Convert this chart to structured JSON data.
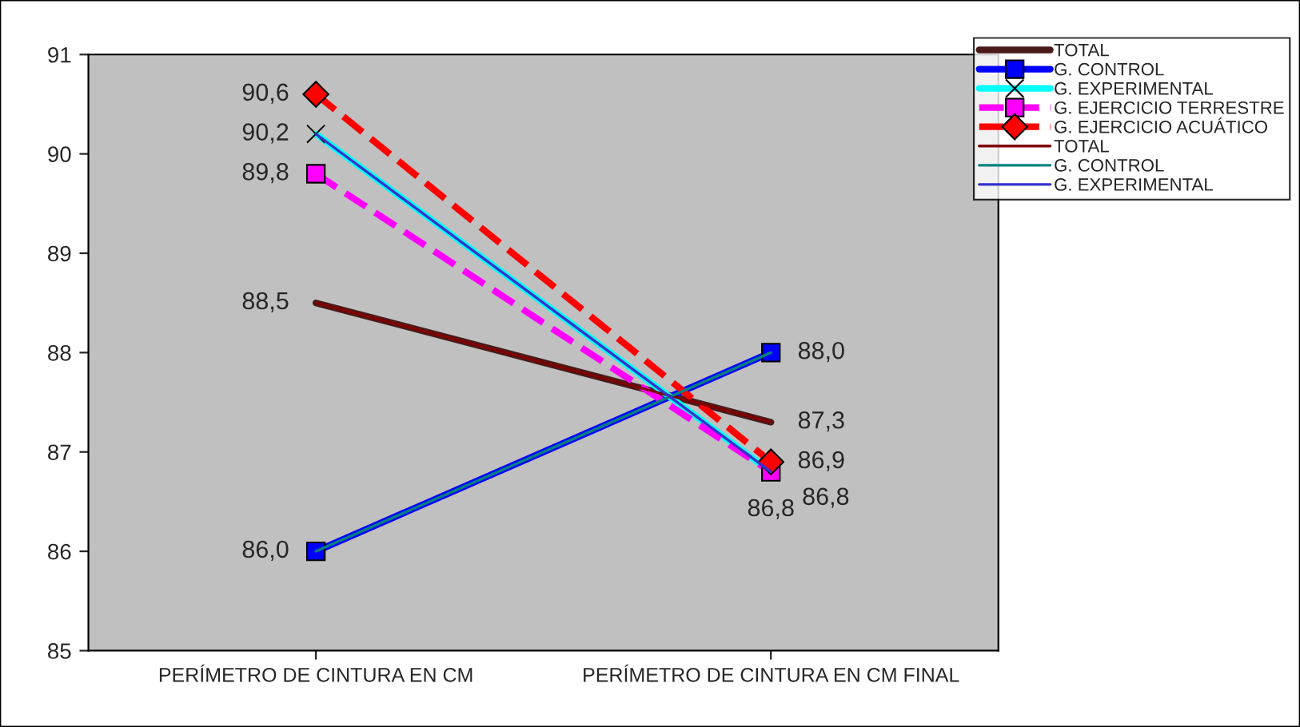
{
  "chart_data": {
    "type": "line",
    "categories": [
      "PERÍMETRO DE CINTURA EN CM",
      "PERÍMETRO DE CINTURA EN CM FINAL"
    ],
    "ylim": [
      85,
      91
    ],
    "yticks": [
      85,
      86,
      87,
      88,
      89,
      90,
      91
    ],
    "grid": false,
    "legend": "top right",
    "series": [
      {
        "name": "TOTAL",
        "color": "#4a1a1a",
        "values": [
          88.5,
          87.3
        ],
        "marker": "none",
        "line_style": "solid",
        "value_labels": [
          "88,5",
          "87,3"
        ]
      },
      {
        "name": "G. CONTROL",
        "color": "#0000ff",
        "values": [
          86.0,
          88.0
        ],
        "marker": "square",
        "line_style": "solid",
        "value_labels": [
          "86,0",
          "88,0"
        ]
      },
      {
        "name": "G. EXPERIMENTAL",
        "color": "#00ffff",
        "values": [
          90.2,
          86.8
        ],
        "marker": "cross",
        "line_style": "solid",
        "value_labels": [
          "90,2",
          "86,8"
        ]
      },
      {
        "name": "G. EJERCICIO TERRESTRE",
        "color": "#ff00ff",
        "values": [
          89.8,
          86.8
        ],
        "marker": "square",
        "line_style": "dashed",
        "value_labels": [
          "89,8",
          "86,8"
        ]
      },
      {
        "name": "G. EJERCICIO ACUÁTICO",
        "color": "#ff0000",
        "values": [
          90.6,
          86.9
        ],
        "marker": "diamond",
        "line_style": "dashed",
        "value_labels": [
          "90,6",
          "86,9"
        ]
      },
      {
        "name": "TOTAL",
        "color": "#800000",
        "values": [
          88.5,
          87.3
        ],
        "marker": "none",
        "line_style": "solid"
      },
      {
        "name": "G. CONTROL",
        "color": "#008080",
        "values": [
          86.0,
          88.0
        ],
        "marker": "none",
        "line_style": "solid"
      },
      {
        "name": "G. EXPERIMENTAL",
        "color": "#3333cc",
        "values": [
          90.2,
          86.8
        ],
        "marker": "none",
        "line_style": "solid"
      }
    ]
  }
}
